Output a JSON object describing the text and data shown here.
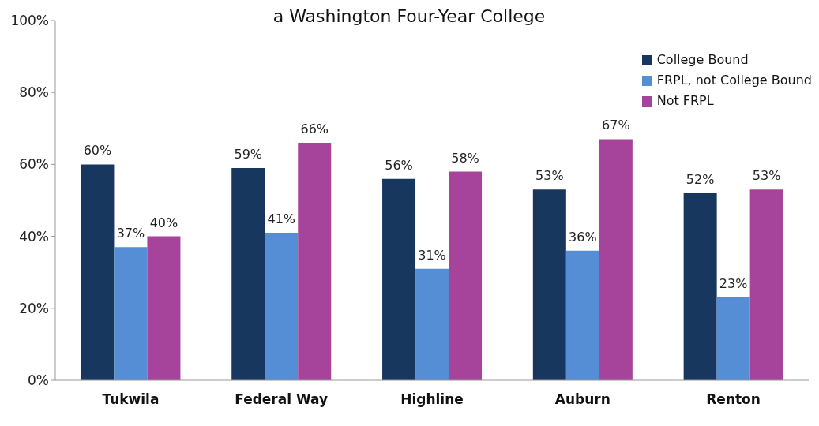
{
  "chart_data": {
    "type": "bar",
    "title": "a Washington Four-Year College",
    "categories": [
      "Tukwila",
      "Federal Way",
      "Highline",
      "Auburn",
      "Renton"
    ],
    "series": [
      {
        "name": "College Bound",
        "color": "#17375e",
        "values": [
          60,
          59,
          56,
          53,
          52
        ],
        "value_labels": [
          "60%",
          "59%",
          "56%",
          "53%",
          "52%"
        ]
      },
      {
        "name": "FRPL, not College Bound",
        "color": "#558ed5",
        "values": [
          37,
          41,
          31,
          36,
          23
        ],
        "value_labels": [
          "37%",
          "41%",
          "31%",
          "36%",
          "23%"
        ]
      },
      {
        "name": "Not FRPL",
        "color": "#a5449a",
        "values": [
          40,
          66,
          58,
          67,
          53
        ],
        "value_labels": [
          "40%",
          "66%",
          "58%",
          "67%",
          "53%"
        ]
      }
    ],
    "ylim": [
      0,
      100
    ],
    "yticks": [
      {
        "value": 0,
        "label": "0%"
      },
      {
        "value": 20,
        "label": "20%"
      },
      {
        "value": 40,
        "label": "40%"
      },
      {
        "value": 60,
        "label": "60%"
      },
      {
        "value": 80,
        "label": "80%"
      },
      {
        "value": 100,
        "label": "100%"
      }
    ],
    "grid": false,
    "legend": "top right"
  }
}
